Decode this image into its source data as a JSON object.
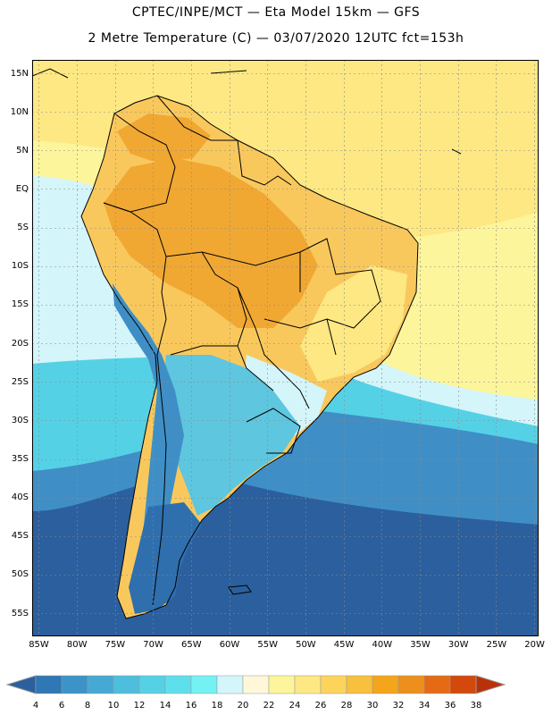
{
  "title": {
    "line1": "CPTEC/INPE/MCT —  Eta Model 15km — GFS",
    "line2": "2 Metre Temperature (C) — 03/07/2020 12UTC fct=153h"
  },
  "axes": {
    "lat_labels": [
      "15N",
      "10N",
      "5N",
      "EQ",
      "5S",
      "10S",
      "15S",
      "20S",
      "25S",
      "30S",
      "35S",
      "40S",
      "45S",
      "50S",
      "55S"
    ],
    "lon_labels": [
      "85W",
      "80W",
      "75W",
      "70W",
      "65W",
      "60W",
      "55W",
      "50W",
      "45W",
      "40W",
      "35W",
      "30W",
      "25W",
      "20W"
    ]
  },
  "colorbar": {
    "labels": [
      "4",
      "6",
      "8",
      "10",
      "12",
      "14",
      "16",
      "18",
      "20",
      "22",
      "24",
      "26",
      "28",
      "30",
      "32",
      "34",
      "36",
      "38"
    ],
    "colors": [
      "#2b5f9e",
      "#2f77b5",
      "#3b93c8",
      "#46a9d3",
      "#4dbfdc",
      "#55d1e6",
      "#5ee0ec",
      "#74f1f3",
      "#d4f5f9",
      "#fef7d8",
      "#fdf59b",
      "#fde883",
      "#fcd45c",
      "#f7c03d",
      "#f4a51c",
      "#ed8f1d",
      "#e56a14",
      "#d2490b",
      "#b93108"
    ]
  },
  "map_colors": {
    "ocean_cold": "#2b5f9e",
    "ocean_mid": "#3f8fc6",
    "ocean_cool": "#55d1e6",
    "ocean_mild": "#d4f5f9",
    "ocean_warm": "#fdf59b",
    "ocean_hot": "#fde883",
    "land_hot": "#f0a833",
    "land_warm": "#f9c85d",
    "land_mild": "#fde883",
    "andes": "#3f8fc6",
    "patagonia": "#2f6fae",
    "pampa": "#5ec6df",
    "border": "#000000"
  }
}
